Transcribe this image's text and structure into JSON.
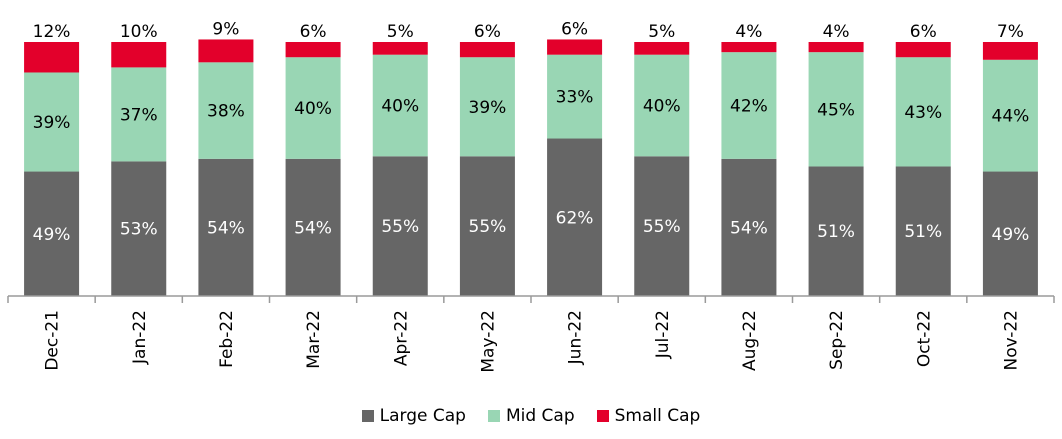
{
  "chart_data": {
    "type": "bar",
    "stacked": true,
    "categories": [
      "Dec-21",
      "Jan-22",
      "Feb-22",
      "Mar-22",
      "Apr-22",
      "May-22",
      "Jun-22",
      "Jul-22",
      "Aug-22",
      "Sep-22",
      "Oct-22",
      "Nov-22"
    ],
    "series": [
      {
        "name": "Large Cap",
        "color": "#666666",
        "label_color": "#ffffff",
        "values": [
          49,
          53,
          54,
          54,
          55,
          55,
          62,
          55,
          54,
          51,
          51,
          49
        ]
      },
      {
        "name": "Mid Cap",
        "color": "#99d6b4",
        "label_color": "#000000",
        "values": [
          39,
          37,
          38,
          40,
          40,
          39,
          33,
          40,
          42,
          45,
          43,
          44
        ]
      },
      {
        "name": "Small Cap",
        "color": "#e3002b",
        "label_color": "#000000",
        "values": [
          12,
          10,
          9,
          6,
          5,
          6,
          6,
          5,
          4,
          4,
          6,
          7
        ]
      }
    ],
    "value_format": "percent",
    "ylim": [
      0,
      100
    ],
    "title": "",
    "xlabel": "",
    "ylabel": "",
    "x_tick_rotation": "vertical",
    "grid": false,
    "legend_position": "bottom"
  }
}
